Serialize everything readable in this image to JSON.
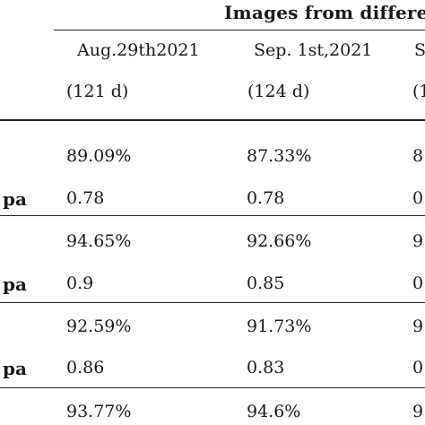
{
  "table": {
    "group_header": "Images from differe",
    "columns": [
      {
        "date": "Aug.29th2021",
        "days": "(121 d)"
      },
      {
        "date": "Sep. 1st,2021",
        "days": "(124 d)"
      },
      {
        "date": "S",
        "days": "(1"
      }
    ],
    "rows": [
      {
        "label": "",
        "values": [
          "89.09%",
          "87.33%",
          "8"
        ]
      },
      {
        "label": "pa",
        "values": [
          "0.78",
          "0.78",
          "0"
        ]
      },
      {
        "label": "",
        "values": [
          "94.65%",
          "92.66%",
          "9"
        ]
      },
      {
        "label": "pa",
        "values": [
          "0.9",
          "0.85",
          "0"
        ]
      },
      {
        "label": "",
        "values": [
          "92.59%",
          "91.73%",
          "9"
        ]
      },
      {
        "label": "pa",
        "values": [
          "0.86",
          "0.83",
          "0"
        ]
      },
      {
        "label": "",
        "values": [
          "93.77%",
          "94.6%",
          "9"
        ]
      }
    ]
  }
}
